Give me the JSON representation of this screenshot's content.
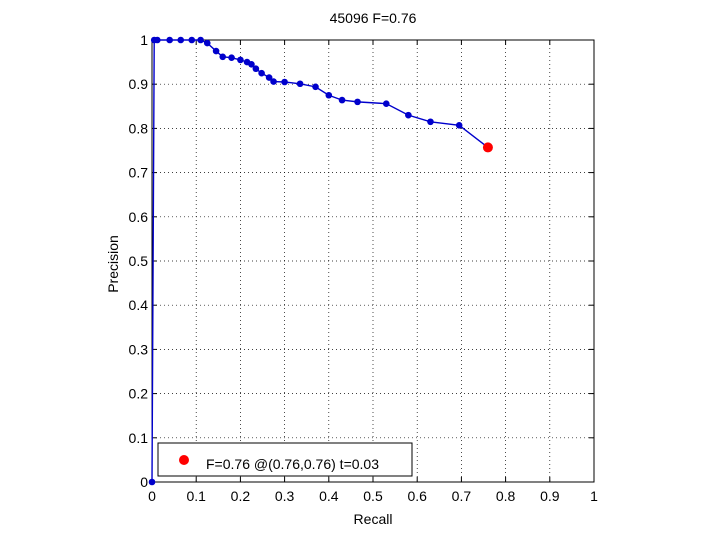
{
  "chart_data": {
    "type": "line",
    "title": "45096 F=0.76",
    "xlabel": "Recall",
    "ylabel": "Precision",
    "xlim": [
      0,
      1
    ],
    "ylim": [
      0,
      1
    ],
    "xticks": [
      "0",
      "0.1",
      "0.2",
      "0.3",
      "0.4",
      "0.5",
      "0.6",
      "0.7",
      "0.8",
      "0.9",
      "1"
    ],
    "yticks": [
      "0",
      "0.1",
      "0.2",
      "0.3",
      "0.4",
      "0.5",
      "0.6",
      "0.7",
      "0.8",
      "0.9",
      "1"
    ],
    "grid": true,
    "legend_position": "bottom-left",
    "series": [
      {
        "marker": "dot",
        "color": "#0000cc",
        "points": [
          [
            0,
            0
          ],
          [
            0.005,
            1.0
          ],
          [
            0.012,
            1.0
          ],
          [
            0.04,
            1.0
          ],
          [
            0.065,
            1.0
          ],
          [
            0.09,
            1.0
          ],
          [
            0.11,
            1.0
          ],
          [
            0.125,
            0.993
          ],
          [
            0.145,
            0.975
          ],
          [
            0.16,
            0.962
          ],
          [
            0.18,
            0.96
          ],
          [
            0.2,
            0.955
          ],
          [
            0.215,
            0.95
          ],
          [
            0.225,
            0.945
          ],
          [
            0.235,
            0.935
          ],
          [
            0.248,
            0.925
          ],
          [
            0.265,
            0.915
          ],
          [
            0.275,
            0.906
          ],
          [
            0.3,
            0.905
          ],
          [
            0.335,
            0.901
          ],
          [
            0.37,
            0.894
          ],
          [
            0.4,
            0.875
          ],
          [
            0.43,
            0.864
          ],
          [
            0.465,
            0.86
          ],
          [
            0.53,
            0.856
          ],
          [
            0.58,
            0.83
          ],
          [
            0.63,
            0.815
          ],
          [
            0.695,
            0.807
          ],
          [
            0.76,
            0.757
          ]
        ]
      }
    ],
    "highlight": {
      "x": 0.76,
      "y": 0.757,
      "color": "#ff0000",
      "label": "F=0.76 @(0.76,0.76) t=0.03"
    }
  }
}
